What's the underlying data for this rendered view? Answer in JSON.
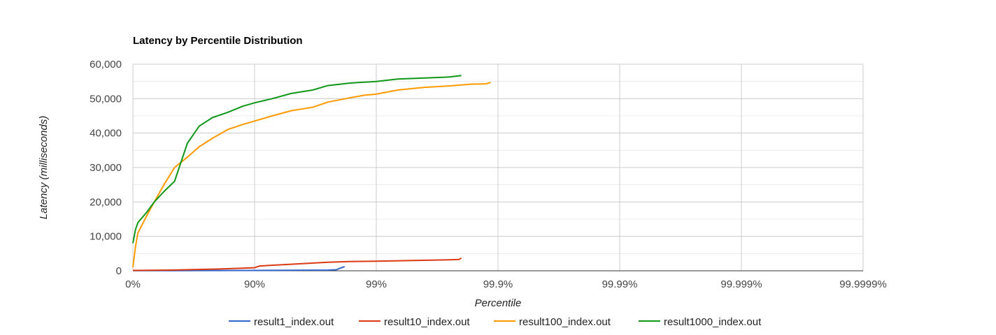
{
  "chart_data": {
    "type": "line",
    "title": "Latency by Percentile Distribution",
    "xlabel": "Percentile",
    "ylabel": "Latency (milliseconds)",
    "x_scale": "log-percentile (1/(1-p))",
    "x_range": [
      1,
      1000000
    ],
    "x_ticks": [
      {
        "value": 1,
        "label": "0%"
      },
      {
        "value": 10,
        "label": "90%"
      },
      {
        "value": 100,
        "label": "99%"
      },
      {
        "value": 1000,
        "label": "99.9%"
      },
      {
        "value": 10000,
        "label": "99.99%"
      },
      {
        "value": 100000,
        "label": "99.999%"
      },
      {
        "value": 1000000,
        "label": "99.9999%"
      }
    ],
    "ylim": [
      0,
      60000
    ],
    "y_ticks": [
      {
        "value": 0,
        "label": "0"
      },
      {
        "value": 10000,
        "label": "10,000"
      },
      {
        "value": 20000,
        "label": "20,000"
      },
      {
        "value": 30000,
        "label": "30,000"
      },
      {
        "value": 40000,
        "label": "40,000"
      },
      {
        "value": 50000,
        "label": "50,000"
      },
      {
        "value": 60000,
        "label": "60,000"
      }
    ],
    "grid": true,
    "legend_position": "bottom",
    "series": [
      {
        "name": "result1_index.out",
        "color": "#3366cc",
        "x": [
          1,
          10,
          20,
          40,
          47,
          50,
          55
        ],
        "y": [
          50,
          100,
          150,
          200,
          300,
          700,
          1200
        ]
      },
      {
        "name": "result10_index.out",
        "color": "#dc3912",
        "x": [
          1,
          2,
          5,
          10,
          11,
          20,
          40,
          60,
          100,
          200,
          400,
          480,
          500
        ],
        "y": [
          100,
          200,
          500,
          900,
          1400,
          1900,
          2500,
          2700,
          2800,
          3000,
          3200,
          3300,
          3700
        ]
      },
      {
        "name": "result100_index.out",
        "color": "#ff9900",
        "x": [
          1,
          1.05,
          1.1,
          1.3,
          1.5,
          1.8,
          2.2,
          2.8,
          3.5,
          4.5,
          6,
          8,
          10,
          14,
          20,
          30,
          40,
          60,
          80,
          100,
          150,
          250,
          400,
          600,
          800,
          870
        ],
        "y": [
          1000,
          7000,
          11000,
          16000,
          20000,
          25000,
          30000,
          33000,
          36000,
          38500,
          41000,
          42500,
          43500,
          45000,
          46500,
          47500,
          49000,
          50200,
          51000,
          51300,
          52500,
          53300,
          53700,
          54200,
          54300,
          54700
        ]
      },
      {
        "name": "result1000_index.out",
        "color": "#109618",
        "x": [
          1,
          1.05,
          1.1,
          1.3,
          1.5,
          1.8,
          2.2,
          2.8,
          3.5,
          4.5,
          6,
          8,
          10,
          14,
          20,
          30,
          40,
          60,
          80,
          100,
          150,
          250,
          400,
          500
        ],
        "y": [
          8000,
          12000,
          14000,
          17000,
          20000,
          23000,
          26000,
          37000,
          42000,
          44500,
          46000,
          47800,
          48800,
          50000,
          51500,
          52500,
          53800,
          54500,
          54800,
          55000,
          55700,
          56000,
          56300,
          56700
        ]
      }
    ]
  }
}
